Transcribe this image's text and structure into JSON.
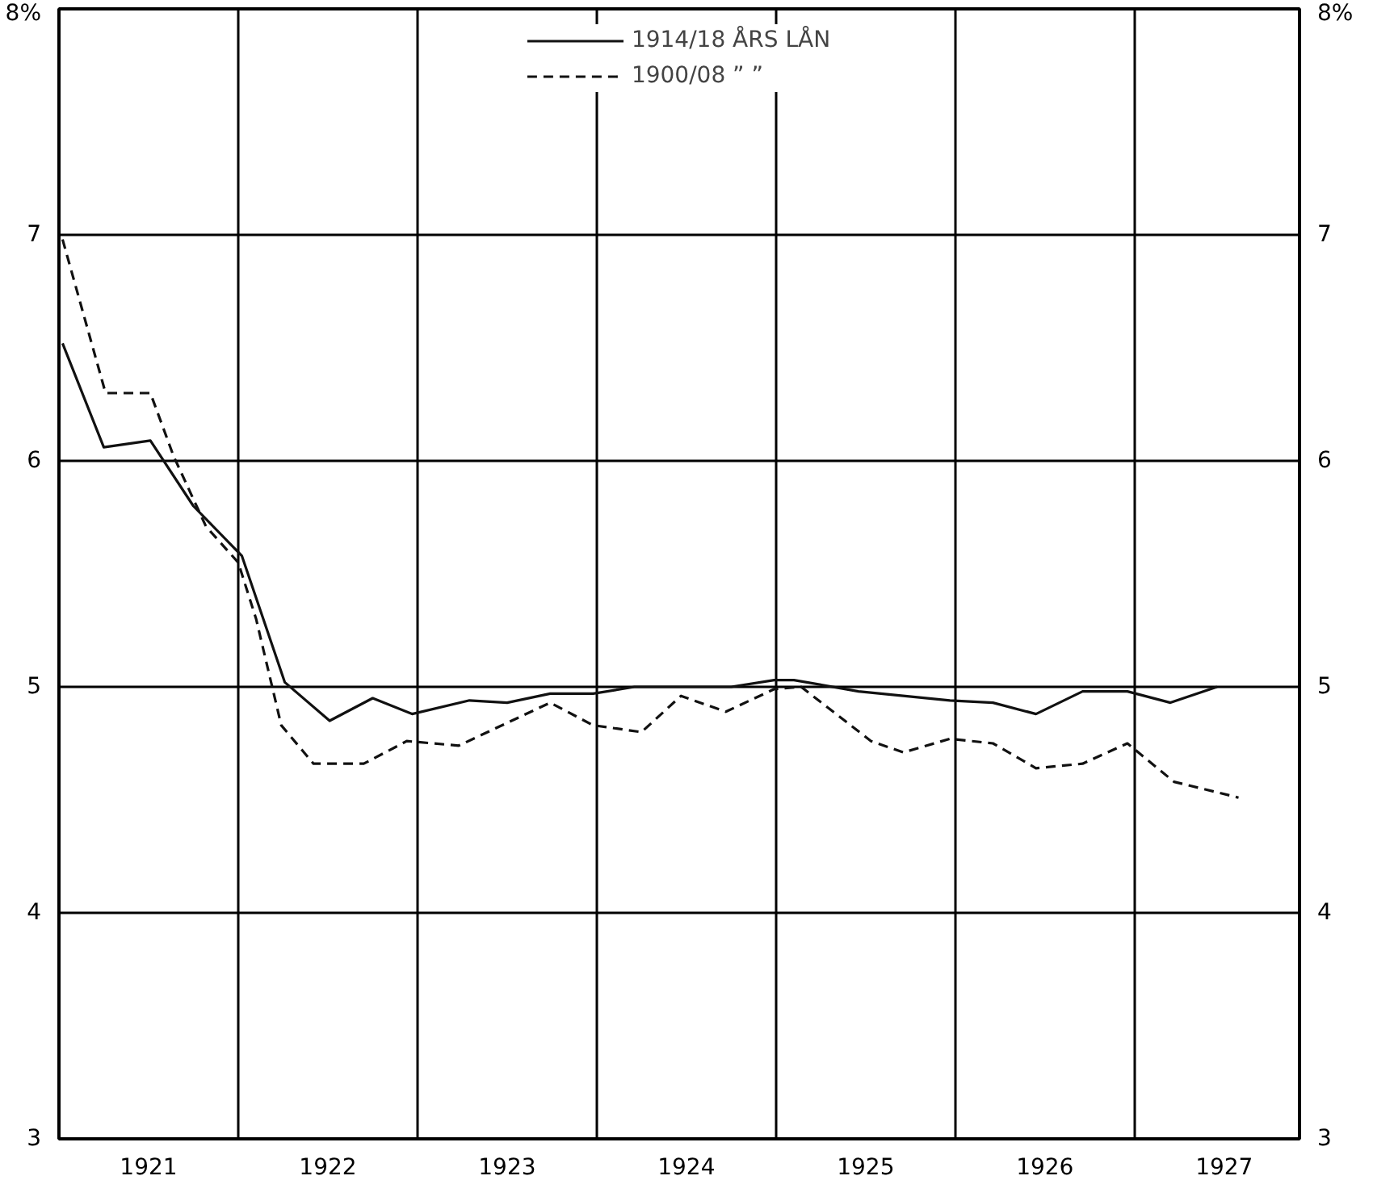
{
  "chart_data": {
    "type": "line",
    "xlim": [
      1921.0,
      1927.92
    ],
    "xticks": [
      {
        "value": 1921.5,
        "label": "1921"
      },
      {
        "value": 1922,
        "label": null
      },
      {
        "value": 1922.5,
        "label": "1922"
      },
      {
        "value": 1923,
        "label": null
      },
      {
        "value": 1923.5,
        "label": "1923"
      },
      {
        "value": 1924,
        "label": null
      },
      {
        "value": 1924.5,
        "label": "1924"
      },
      {
        "value": 1925,
        "label": null
      },
      {
        "value": 1925.5,
        "label": "1925"
      },
      {
        "value": 1926,
        "label": null
      },
      {
        "value": 1926.5,
        "label": "1926"
      },
      {
        "value": 1927,
        "label": null
      },
      {
        "value": 1927.5,
        "label": "1927"
      }
    ],
    "ylim": [
      3,
      8
    ],
    "yticks": [
      3,
      4,
      5,
      6,
      7,
      {
        "value": 8,
        "label": "8%"
      }
    ],
    "y2lim": [
      3,
      8
    ],
    "y2ticks": [
      3,
      4,
      5,
      6,
      7,
      {
        "value": 8,
        "label": "8%"
      }
    ],
    "grid": true,
    "legend": "top",
    "marker": "none",
    "series": [
      {
        "name": "1914/18 ÅRS LÅN",
        "color": "#111111",
        "line_style": "solid",
        "x": [
          1921.02,
          1921.25,
          1921.51,
          1921.75,
          1922.02,
          1922.26,
          1922.51,
          1922.75,
          1922.97,
          1923.29,
          1923.5,
          1923.74,
          1923.98,
          1924.21,
          1924.75,
          1924.99,
          1925.1,
          1925.46,
          1925.97,
          1926.21,
          1926.45,
          1926.71,
          1926.96,
          1927.2,
          1927.46
        ],
        "values": [
          6.52,
          6.06,
          6.09,
          5.8,
          5.58,
          5.02,
          4.85,
          4.95,
          4.88,
          4.94,
          4.93,
          4.97,
          4.97,
          5.0,
          5.0,
          5.03,
          5.03,
          4.98,
          4.94,
          4.93,
          4.88,
          4.98,
          4.98,
          4.93,
          5.0
        ]
      },
      {
        "name": "1900/08 ” ”",
        "color": "#111111",
        "line_style": "dashed",
        "x": [
          1921.02,
          1921.26,
          1921.51,
          1921.64,
          1921.82,
          1922.0,
          1922.1,
          1922.24,
          1922.42,
          1922.7,
          1922.94,
          1923.23,
          1923.74,
          1923.98,
          1924.25,
          1924.47,
          1924.72,
          1924.99,
          1925.14,
          1925.53,
          1925.71,
          1925.97,
          1926.21,
          1926.45,
          1926.71,
          1926.96,
          1927.22,
          1927.58
        ],
        "values": [
          6.98,
          6.3,
          6.3,
          6.02,
          5.71,
          5.55,
          5.3,
          4.83,
          4.66,
          4.66,
          4.76,
          4.74,
          4.93,
          4.83,
          4.8,
          4.96,
          4.89,
          4.99,
          5.0,
          4.76,
          4.71,
          4.77,
          4.75,
          4.64,
          4.66,
          4.75,
          4.58,
          4.51
        ]
      }
    ]
  }
}
